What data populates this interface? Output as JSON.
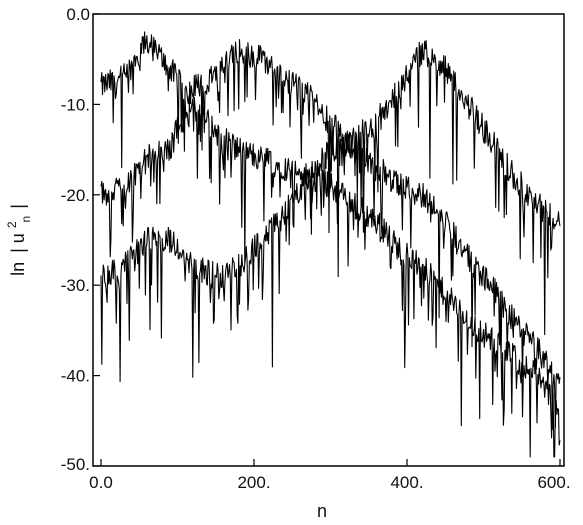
{
  "chart_data": {
    "type": "line",
    "xlabel": "n",
    "ylabel": "ln|uₙ²|",
    "ylabel_parts": {
      "prefix": "ln",
      "base": "u",
      "sup": "2",
      "sub": "n"
    },
    "xlim": [
      0,
      600
    ],
    "ylim": [
      -50,
      0
    ],
    "x_ticks": [
      {
        "value": 0,
        "label": "0.0"
      },
      {
        "value": 200,
        "label": "200."
      },
      {
        "value": 400,
        "label": "400."
      },
      {
        "value": 600,
        "label": "600."
      }
    ],
    "y_ticks": [
      {
        "value": 0,
        "label": "0.0"
      },
      {
        "value": -10,
        "label": "-10."
      },
      {
        "value": -20,
        "label": "-20."
      },
      {
        "value": -30,
        "label": "-30."
      },
      {
        "value": -40,
        "label": "-40."
      },
      {
        "value": -50,
        "label": "-50."
      }
    ],
    "grid": false,
    "line_color": "#000000",
    "series": [
      {
        "x": [
          0,
          30,
          60,
          90,
          120,
          150,
          180,
          210,
          240,
          270,
          300,
          330,
          360,
          390,
          420,
          450,
          480,
          510,
          540,
          570,
          600
        ],
        "values": [
          -8,
          -7,
          -3,
          -6,
          -10,
          -13,
          -15,
          -16,
          -17,
          -18,
          -19,
          -21,
          -23,
          -26,
          -28,
          -31,
          -34,
          -36,
          -38,
          -40,
          -44
        ]
      },
      {
        "x": [
          0,
          30,
          60,
          90,
          120,
          150,
          180,
          210,
          240,
          270,
          300,
          330,
          360,
          390,
          420,
          450,
          480,
          510,
          540,
          570,
          600
        ],
        "values": [
          -20,
          -19,
          -16,
          -15,
          -8,
          -7,
          -4,
          -5,
          -7,
          -9,
          -12,
          -15,
          -17,
          -19,
          -20,
          -23,
          -27,
          -30,
          -34,
          -37,
          -41
        ]
      },
      {
        "x": [
          0,
          30,
          60,
          90,
          120,
          150,
          180,
          210,
          240,
          270,
          300,
          330,
          360,
          390,
          420,
          450,
          480,
          510,
          540,
          570,
          600
        ],
        "values": [
          -29,
          -28,
          -25,
          -25,
          -28,
          -29,
          -28,
          -25,
          -22,
          -18,
          -15,
          -14,
          -12,
          -8,
          -4,
          -6,
          -10,
          -14,
          -18,
          -21,
          -23
        ]
      }
    ]
  }
}
